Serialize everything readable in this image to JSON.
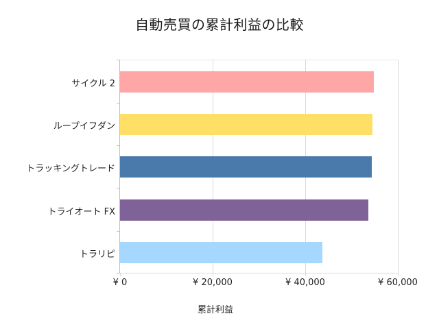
{
  "chart_data": {
    "type": "bar",
    "orientation": "horizontal",
    "title": "自動売買の累計利益の比較",
    "xlabel": "累計利益",
    "ylabel": "",
    "categories": [
      "サイクル 2",
      "ループイフダン",
      "トラッキングトレード",
      "トライオート FX",
      "トラリピ"
    ],
    "values": [
      54770,
      54580,
      54430,
      53630,
      43760
    ],
    "colors": [
      "#ffa6a6",
      "#ffdf66",
      "#4a7aab",
      "#7f6297",
      "#a6d8ff"
    ],
    "xlim": [
      0,
      60000
    ],
    "x_ticks": [
      0,
      20000,
      40000,
      60000
    ],
    "x_tick_labels": [
      "¥ 0",
      "¥ 20,000",
      "¥ 40,000",
      "¥ 60,000"
    ],
    "grid": "vertical gridlines",
    "legend": "none"
  }
}
